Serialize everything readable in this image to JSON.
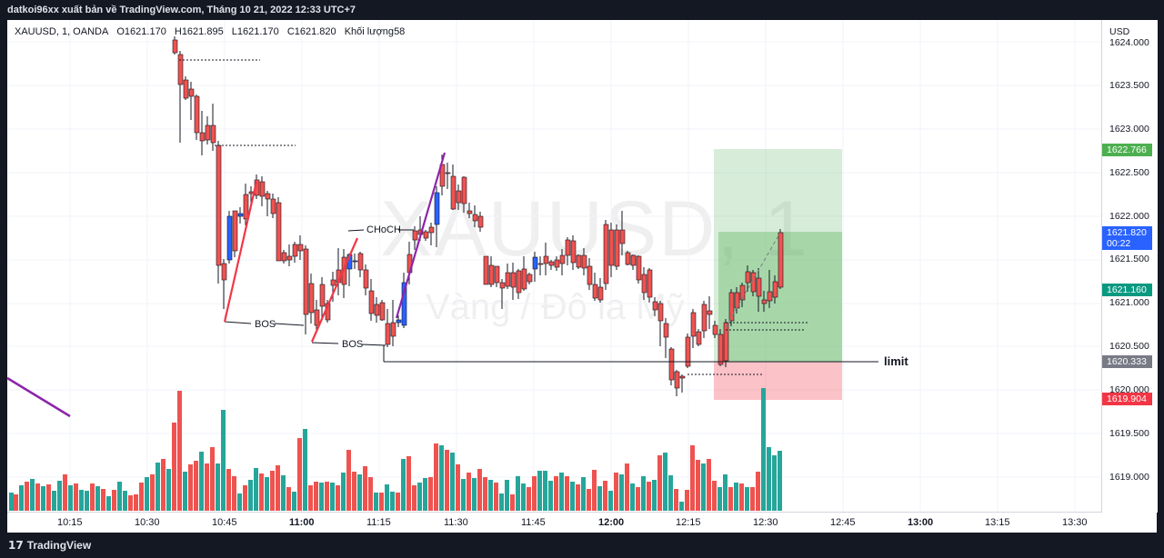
{
  "header": {
    "credit": "datkoi96xx xuất bản về TradingView.com, Tháng 10 21, 2022 12:33 UTC+7"
  },
  "legend": {
    "symbol": "XAUUSD, 1, OANDA",
    "open": "O1621.170",
    "high": "H1621.895",
    "low": "L1621.170",
    "close": "C1621.820",
    "volume_label": "Khối lượng",
    "volume_value": "58"
  },
  "watermark": {
    "symbol": "XAUUSD, 1",
    "description": "Vàng / Đô la Mỹ"
  },
  "price_axis": {
    "currency": "USD",
    "ticks": [
      "1624.000",
      "1623.500",
      "1623.000",
      "1622.500",
      "1622.000",
      "1621.500",
      "1621.000",
      "1620.500",
      "1620.000",
      "1619.500",
      "1619.000"
    ]
  },
  "price_tags": {
    "target": {
      "text": "1622.766",
      "color": "#4caf50"
    },
    "last": {
      "text": "1621.820",
      "countdown": "00:22",
      "color": "#2962ff"
    },
    "entry": {
      "text": "1621.160",
      "color": "#089981"
    },
    "limit": {
      "text": "1620.333",
      "color": "#787b86"
    },
    "stop": {
      "text": "1619.904",
      "color": "#f23645"
    }
  },
  "time_axis": [
    {
      "label": "10:15",
      "bold": false
    },
    {
      "label": "10:30",
      "bold": false
    },
    {
      "label": "10:45",
      "bold": false
    },
    {
      "label": "11:00",
      "bold": true
    },
    {
      "label": "11:15",
      "bold": false
    },
    {
      "label": "11:30",
      "bold": false
    },
    {
      "label": "11:45",
      "bold": false
    },
    {
      "label": "12:00",
      "bold": true
    },
    {
      "label": "12:15",
      "bold": false
    },
    {
      "label": "12:30",
      "bold": false
    },
    {
      "label": "12:45",
      "bold": false
    },
    {
      "label": "13:00",
      "bold": true
    },
    {
      "label": "13:15",
      "bold": false
    },
    {
      "label": "13:30",
      "bold": false
    }
  ],
  "annotations": {
    "bos1": "BOS",
    "bos2": "BOS",
    "choch": "CHoCH",
    "limit": "limit"
  },
  "colors": {
    "up": "#2962ff",
    "down": "#ef5350",
    "vol_up": "#26a69a",
    "vol_down": "#ef5350",
    "profit_zone": "#4caf50",
    "loss_zone": "#f23645",
    "trend": "#8e24aa"
  },
  "footer": {
    "brand": "TradingView"
  }
}
